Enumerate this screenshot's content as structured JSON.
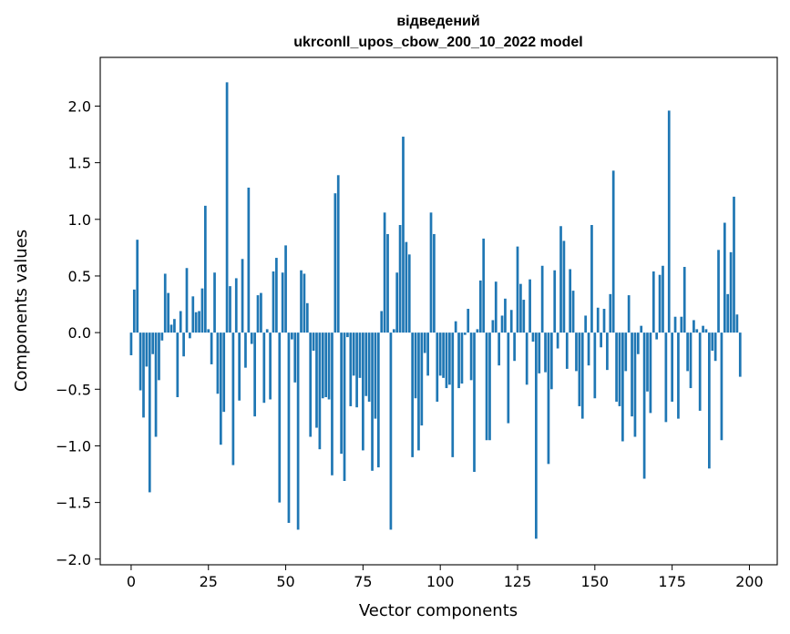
{
  "chart_data": {
    "type": "bar",
    "title_line1": "відведений",
    "title_line2": "ukrconll_upos_cbow_200_10_2022 model",
    "xlabel": "Vector components",
    "ylabel": "Components values",
    "xlim": [
      -10,
      209
    ],
    "ylim": [
      -2.05,
      2.43
    ],
    "xticks": [
      0,
      25,
      50,
      75,
      100,
      125,
      150,
      175,
      200
    ],
    "yticks": [
      -2.0,
      -1.5,
      -1.0,
      -0.5,
      0.0,
      0.5,
      1.0,
      1.5,
      2.0
    ],
    "ytick_labels": [
      "−2.0",
      "−1.5",
      "−1.0",
      "−0.5",
      "0.0",
      "0.5",
      "1.0",
      "1.5",
      "2.0"
    ],
    "bar_color": "#1f77b4",
    "bar_width": 0.8,
    "values": [
      -0.2,
      0.38,
      0.82,
      -0.51,
      -0.75,
      -0.3,
      -1.41,
      -0.19,
      -0.92,
      -0.42,
      -0.07,
      0.52,
      0.35,
      0.07,
      0.12,
      -0.57,
      0.19,
      -0.21,
      0.57,
      -0.05,
      0.32,
      0.18,
      0.19,
      0.39,
      1.12,
      0.03,
      -0.28,
      0.53,
      -0.54,
      -0.99,
      -0.7,
      2.21,
      0.41,
      -1.17,
      0.48,
      -0.6,
      0.65,
      -0.31,
      1.28,
      -0.1,
      -0.74,
      0.33,
      0.35,
      -0.62,
      0.03,
      -0.59,
      0.54,
      0.66,
      -1.5,
      0.53,
      0.77,
      -1.68,
      -0.06,
      -0.44,
      -1.74,
      0.55,
      0.52,
      0.26,
      -0.92,
      -0.16,
      -0.84,
      -1.03,
      -0.58,
      -0.57,
      -0.59,
      -1.26,
      1.23,
      1.39,
      -1.07,
      -1.31,
      -0.04,
      -0.65,
      -0.38,
      -0.66,
      -0.4,
      -1.04,
      -0.56,
      -0.61,
      -1.22,
      -0.76,
      -1.19,
      0.19,
      1.06,
      0.87,
      -1.74,
      0.03,
      0.53,
      0.95,
      1.73,
      0.8,
      0.69,
      -1.1,
      -0.58,
      -1.04,
      -0.82,
      -0.18,
      -0.38,
      1.06,
      0.87,
      -0.61,
      -0.38,
      -0.4,
      -0.49,
      -0.46,
      -1.1,
      0.1,
      -0.49,
      -0.45,
      -0.02,
      0.21,
      -0.42,
      -1.23,
      0.03,
      0.46,
      0.83,
      -0.95,
      -0.95,
      0.11,
      0.45,
      -0.29,
      0.15,
      0.3,
      -0.8,
      0.2,
      -0.25,
      0.76,
      0.43,
      0.29,
      -0.46,
      0.47,
      -0.08,
      -1.82,
      -0.36,
      0.59,
      -0.35,
      -1.16,
      -0.5,
      0.55,
      -0.14,
      0.94,
      0.81,
      -0.32,
      0.56,
      0.37,
      -0.34,
      -0.65,
      -0.76,
      0.15,
      -0.29,
      0.95,
      -0.58,
      0.22,
      -0.13,
      0.21,
      -0.33,
      0.34,
      1.43,
      -0.61,
      -0.65,
      -0.96,
      -0.34,
      0.33,
      -0.74,
      -0.92,
      -0.19,
      0.06,
      -1.29,
      -0.52,
      -0.71,
      0.54,
      -0.06,
      0.51,
      0.59,
      -0.79,
      1.96,
      -0.61,
      0.14,
      -0.76,
      0.14,
      0.58,
      -0.34,
      -0.49,
      0.11,
      0.03,
      -0.69,
      0.06,
      0.03,
      -1.2,
      -0.16,
      -0.25,
      0.73,
      -0.95,
      0.97,
      0.34,
      0.71,
      1.2,
      0.16,
      -0.39
    ]
  }
}
